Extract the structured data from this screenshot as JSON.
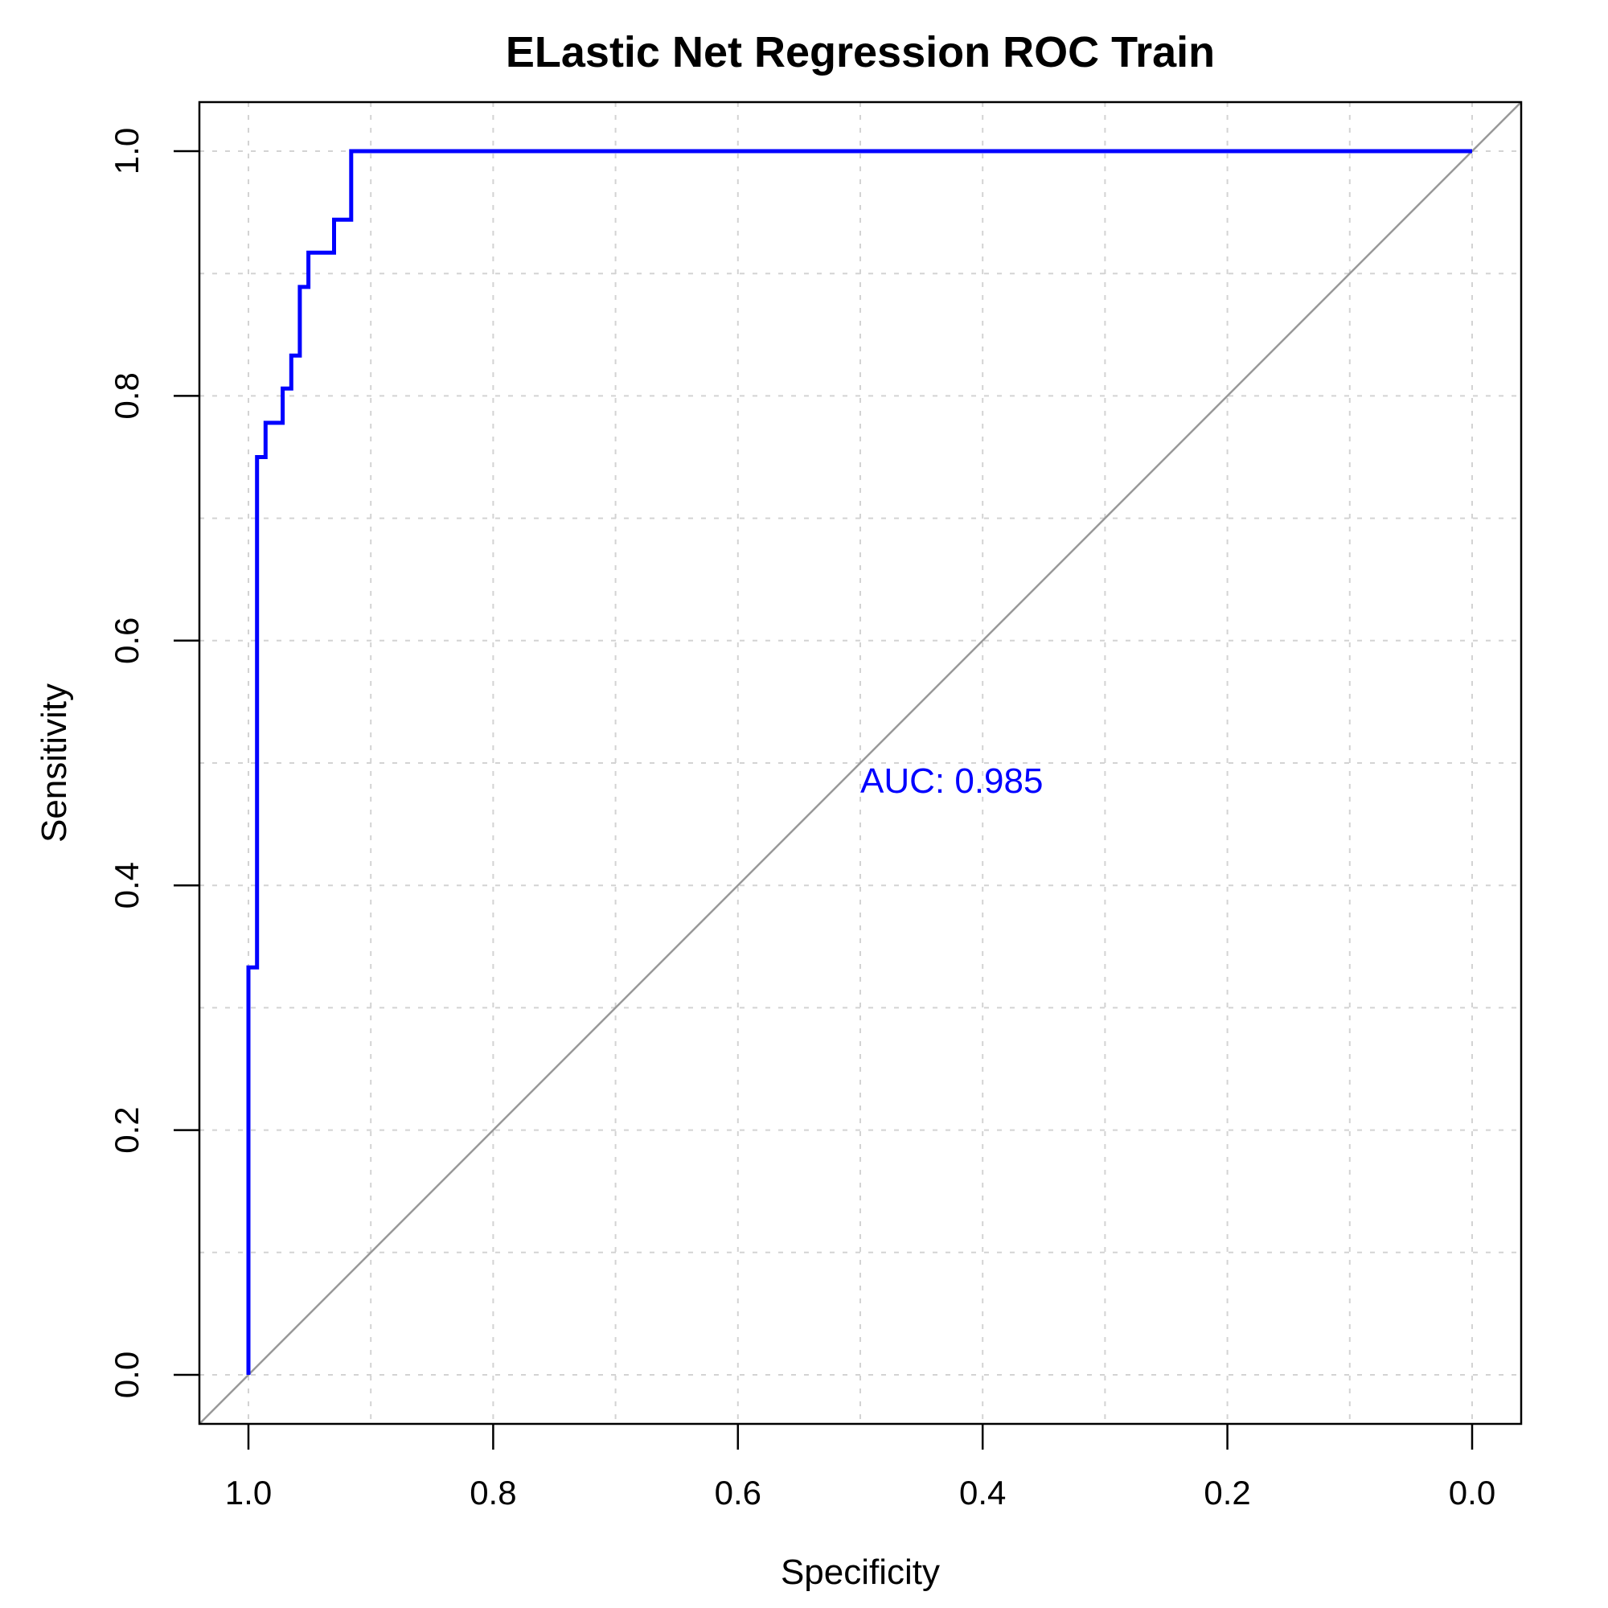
{
  "chart_data": {
    "type": "line",
    "title": "ELastic Net Regression ROC Train",
    "xlabel": "Specificity",
    "ylabel": "Sensitivity",
    "xlim": [
      1.0,
      0.0
    ],
    "ylim": [
      0.0,
      1.0
    ],
    "x_reversed": true,
    "grid": true,
    "x_ticks": [
      {
        "value": 1.0,
        "label": "1.0"
      },
      {
        "value": 0.8,
        "label": "0.8"
      },
      {
        "value": 0.6,
        "label": "0.6"
      },
      {
        "value": 0.4,
        "label": "0.4"
      },
      {
        "value": 0.2,
        "label": "0.2"
      },
      {
        "value": 0.0,
        "label": "0.0"
      }
    ],
    "y_ticks": [
      {
        "value": 0.0,
        "label": "0.0"
      },
      {
        "value": 0.2,
        "label": "0.2"
      },
      {
        "value": 0.4,
        "label": "0.4"
      },
      {
        "value": 0.6,
        "label": "0.6"
      },
      {
        "value": 0.8,
        "label": "0.8"
      },
      {
        "value": 1.0,
        "label": "1.0"
      }
    ],
    "grid_x": [
      1.0,
      0.9,
      0.8,
      0.7,
      0.6,
      0.5,
      0.4,
      0.3,
      0.2,
      0.1,
      0.0
    ],
    "grid_y": [
      0.0,
      0.1,
      0.2,
      0.3,
      0.4,
      0.5,
      0.6,
      0.7,
      0.8,
      0.9,
      1.0
    ],
    "series": [
      {
        "color": "#0000ff",
        "x": [
          1.0,
          1.0,
          0.993,
          0.993,
          0.986,
          0.986,
          0.972,
          0.972,
          0.965,
          0.965,
          0.958,
          0.958,
          0.951,
          0.951,
          0.93,
          0.93,
          0.916,
          0.916,
          0.0
        ],
        "y": [
          0.0,
          0.333,
          0.333,
          0.75,
          0.75,
          0.778,
          0.778,
          0.806,
          0.806,
          0.833,
          0.833,
          0.889,
          0.889,
          0.917,
          0.917,
          0.944,
          0.944,
          1.0,
          1.0
        ]
      }
    ],
    "reference_line": {
      "color": "#999999",
      "x": [
        1.0,
        0.0
      ],
      "y": [
        0.0,
        1.0
      ]
    },
    "annotations": [
      {
        "text": "AUC: 0.985",
        "x": 0.5,
        "y": 0.485,
        "color": "#0000ff"
      }
    ]
  }
}
